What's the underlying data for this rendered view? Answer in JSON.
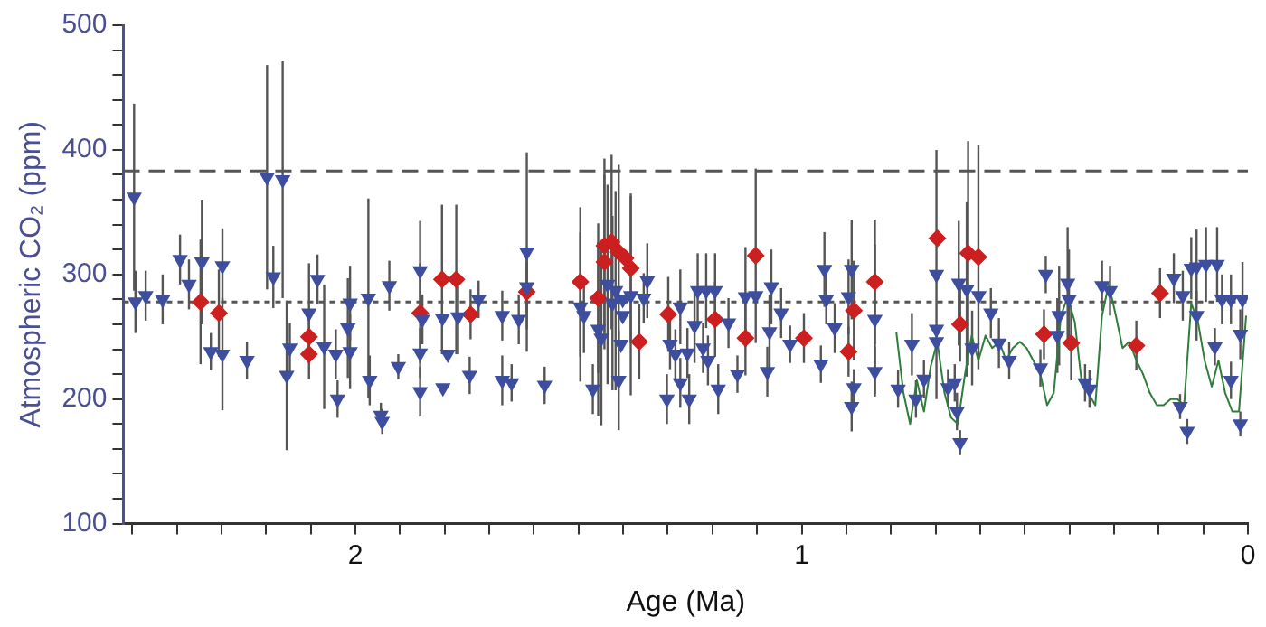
{
  "chart_data": {
    "type": "scatter",
    "xlabel": "Age (Ma)",
    "ylabel": "Atmospheric CO₂ (ppm)",
    "xlim": [
      2.52,
      0
    ],
    "xticks": [
      {
        "value": 2.5,
        "label": null
      },
      {
        "value": 2.4,
        "label": null
      },
      {
        "value": 2.3,
        "label": null
      },
      {
        "value": 2.2,
        "label": null
      },
      {
        "value": 2.1,
        "label": null
      },
      2,
      {
        "value": 1.9,
        "label": null
      },
      {
        "value": 1.8,
        "label": null
      },
      {
        "value": 1.7,
        "label": null
      },
      {
        "value": 1.6,
        "label": null
      },
      {
        "value": 1.5,
        "label": null
      },
      {
        "value": 1.4,
        "label": null
      },
      {
        "value": 1.3,
        "label": null
      },
      {
        "value": 1.2,
        "label": null
      },
      {
        "value": 1.1,
        "label": null
      },
      1,
      {
        "value": 0.9,
        "label": null
      },
      {
        "value": 0.8,
        "label": null
      },
      {
        "value": 0.7,
        "label": null
      },
      {
        "value": 0.6,
        "label": null
      },
      {
        "value": 0.5,
        "label": null
      },
      {
        "value": 0.4,
        "label": null
      },
      {
        "value": 0.3,
        "label": null
      },
      {
        "value": 0.2,
        "label": null
      },
      {
        "value": 0.1,
        "label": null
      },
      0
    ],
    "ylim": [
      100,
      500
    ],
    "yticks": [
      100,
      {
        "value": 120,
        "label": null
      },
      {
        "value": 140,
        "label": null
      },
      {
        "value": 160,
        "label": null
      },
      {
        "value": 180,
        "label": null
      },
      200,
      {
        "value": 220,
        "label": null
      },
      {
        "value": 240,
        "label": null
      },
      {
        "value": 260,
        "label": null
      },
      {
        "value": 280,
        "label": null
      },
      300,
      {
        "value": 320,
        "label": null
      },
      {
        "value": 340,
        "label": null
      },
      {
        "value": 360,
        "label": null
      },
      {
        "value": 380,
        "label": null
      },
      400,
      {
        "value": 420,
        "label": null
      },
      {
        "value": 440,
        "label": null
      },
      {
        "value": 460,
        "label": null
      },
      {
        "value": 480,
        "label": null
      },
      500
    ],
    "grid": false,
    "legend": false,
    "ref_lines": [
      {
        "axis": "y",
        "value": 383,
        "color": "#555555",
        "line_style": "dashed"
      },
      {
        "axis": "y",
        "value": 278,
        "color": "#555555",
        "line_style": "dotted"
      }
    ],
    "series": [
      {
        "type": "line",
        "color": "#2e7d3a",
        "marker": "none",
        "line_style": "solid",
        "x": [
          0.788,
          0.772,
          0.757,
          0.742,
          0.726,
          0.711,
          0.696,
          0.68,
          0.665,
          0.65,
          0.634,
          0.619,
          0.604,
          0.588,
          0.573,
          0.557,
          0.542,
          0.527,
          0.511,
          0.496,
          0.481,
          0.465,
          0.45,
          0.435,
          0.419,
          0.404,
          0.388,
          0.373,
          0.358,
          0.342,
          0.327,
          0.312,
          0.296,
          0.281,
          0.266,
          0.25,
          0.235,
          0.22,
          0.204,
          0.189,
          0.173,
          0.158,
          0.143,
          0.127,
          0.112,
          0.097,
          0.081,
          0.066,
          0.051,
          0.035,
          0.02,
          0.004
        ],
        "values": [
          254,
          205,
          180,
          215,
          190,
          226,
          246,
          205,
          185,
          180,
          220,
          251,
          231,
          251,
          241,
          246,
          231,
          241,
          246,
          241,
          231,
          220,
          195,
          205,
          267,
          282,
          262,
          215,
          205,
          195,
          267,
          292,
          267,
          241,
          246,
          231,
          220,
          205,
          195,
          195,
          200,
          200,
          195,
          277,
          262,
          231,
          210,
          231,
          205,
          190,
          190,
          267
        ]
      },
      {
        "type": "scatter",
        "color": "#3d4e9e",
        "marker": "triangle",
        "x": [
          2.496,
          2.493,
          2.47,
          2.432,
          2.393,
          2.373,
          2.344,
          2.298,
          2.324,
          2.298,
          2.243,
          2.198,
          2.163,
          2.184,
          2.154,
          2.147,
          2.104,
          2.085,
          2.07,
          2.044,
          2.04,
          2.017,
          2.012,
          2.012,
          1.971,
          1.968,
          1.943,
          1.94,
          1.924,
          1.904,
          1.855,
          1.855,
          1.855,
          1.85,
          1.805,
          1.804,
          1.793,
          1.77,
          1.744,
          1.724,
          1.671,
          1.671,
          1.616,
          1.616,
          1.634,
          1.65,
          1.576,
          1.496,
          1.488,
          1.468,
          1.456,
          1.449,
          1.435,
          1.417,
          1.401,
          1.383,
          1.424,
          1.401,
          1.405,
          1.41,
          1.346,
          1.354,
          1.302,
          1.295,
          1.283,
          1.272,
          1.272,
          1.252,
          1.256,
          1.24,
          1.233,
          1.214,
          1.194,
          1.21,
          1.187,
          1.221,
          1.164,
          1.144,
          1.126,
          1.103,
          1.077,
          1.072,
          1.068,
          1.046,
          1.026,
          0.957,
          0.949,
          0.945,
          0.926,
          0.888,
          0.895,
          0.883,
          0.888,
          0.836,
          0.836,
          0.784,
          0.753,
          0.744,
          0.726,
          0.698,
          0.698,
          0.698,
          0.672,
          0.657,
          0.652,
          0.645,
          0.648,
          0.63,
          0.603,
          0.576,
          0.618,
          0.558,
          0.535,
          0.465,
          0.453,
          0.423,
          0.404,
          0.401,
          0.427,
          0.365,
          0.355,
          0.327,
          0.309,
          0.166,
          0.146,
          0.127,
          0.115,
          0.094,
          0.069,
          0.115,
          0.074,
          0.058,
          0.038,
          0.038,
          0.017,
          0.012,
          0.017,
          0.136,
          0.152
        ],
        "values": [
          362,
          278,
          283,
          280,
          312,
          292,
          310,
          307,
          238,
          236,
          231,
          378,
          376,
          298,
          219,
          241,
          269,
          296,
          242,
          236,
          200,
          257,
          238,
          277,
          281,
          215,
          187,
          182,
          291,
          226,
          303,
          237,
          206,
          264,
          265,
          209,
          236,
          266,
          219,
          280,
          267,
          215,
          318,
          290,
          264,
          213,
          211,
          274,
          267,
          208,
          256,
          249,
          292,
          287,
          280,
          283,
          277,
          267,
          244,
          215,
          295,
          281,
          200,
          244,
          236,
          274,
          213,
          200,
          237,
          259,
          287,
          287,
          287,
          231,
          208,
          241,
          261,
          220,
          282,
          283,
          222,
          254,
          290,
          269,
          244,
          228,
          304,
          280,
          257,
          304,
          282,
          209,
          194,
          264,
          222,
          208,
          244,
          200,
          216,
          300,
          256,
          246,
          209,
          213,
          190,
          165,
          293,
          288,
          283,
          269,
          241,
          245,
          231,
          225,
          300,
          267,
          293,
          280,
          251,
          213,
          208,
          291,
          287,
          297,
          283,
          305,
          306,
          308,
          308,
          267,
          242,
          280,
          280,
          215,
          180,
          280,
          252,
          174,
          194
        ],
        "errors": [
          75,
          25,
          20,
          20,
          20,
          20,
          50,
          30,
          15,
          45,
          15,
          90,
          95,
          25,
          60,
          20,
          40,
          20,
          50,
          20,
          15,
          40,
          30,
          30,
          80,
          20,
          10,
          10,
          20,
          10,
          40,
          20,
          20,
          20,
          null,
          null,
          null,
          30,
          15,
          15,
          20,
          20,
          80,
          20,
          20,
          15,
          15,
          60,
          30,
          20,
          70,
          70,
          80,
          80,
          null,
          80,
          70,
          null,
          null,
          40,
          30,
          20,
          20,
          20,
          20,
          30,
          20,
          20,
          20,
          30,
          30,
          30,
          30,
          20,
          20,
          20,
          20,
          15,
          40,
          null,
          20,
          30,
          30,
          20,
          15,
          15,
          30,
          20,
          20,
          40,
          30,
          15,
          20,
          60,
          20,
          15,
          25,
          15,
          15,
          100,
          null,
          null,
          15,
          15,
          15,
          10,
          50,
          70,
          null,
          20,
          30,
          20,
          15,
          15,
          15,
          40,
          45,
          40,
          30,
          15,
          15,
          20,
          20,
          20,
          20,
          25,
          30,
          30,
          30,
          20,
          15,
          20,
          20,
          15,
          10,
          30,
          20,
          10,
          10
        ]
      },
      {
        "type": "scatter",
        "color": "#cc1f1f",
        "marker": "diamond",
        "x": [
          2.347,
          2.306,
          2.104,
          2.104,
          1.855,
          1.806,
          1.774,
          1.742,
          1.616,
          1.496,
          1.442,
          1.426,
          1.41,
          1.395,
          1.442,
          1.383,
          1.456,
          1.364,
          1.299,
          1.194,
          1.103,
          1.126,
          0.995,
          0.883,
          0.895,
          0.836,
          0.696,
          0.645,
          0.627,
          0.604,
          0.457,
          0.396,
          0.25,
          0.197
        ],
        "values": [
          278,
          269,
          250,
          236,
          269,
          296,
          296,
          268,
          286,
          294,
          323,
          326,
          318,
          313,
          310,
          305,
          281,
          246,
          268,
          264,
          315,
          249,
          249,
          271,
          238,
          294,
          329,
          260,
          317,
          314,
          252,
          245,
          243,
          285
        ],
        "errors": [
          50,
          35,
          20,
          20,
          40,
          60,
          60,
          20,
          30,
          60,
          70,
          70,
          70,
          null,
          70,
          60,
          60,
          30,
          30,
          30,
          70,
          30,
          20,
          40,
          20,
          50,
          null,
          30,
          90,
          90,
          20,
          30,
          20,
          20
        ]
      }
    ]
  }
}
